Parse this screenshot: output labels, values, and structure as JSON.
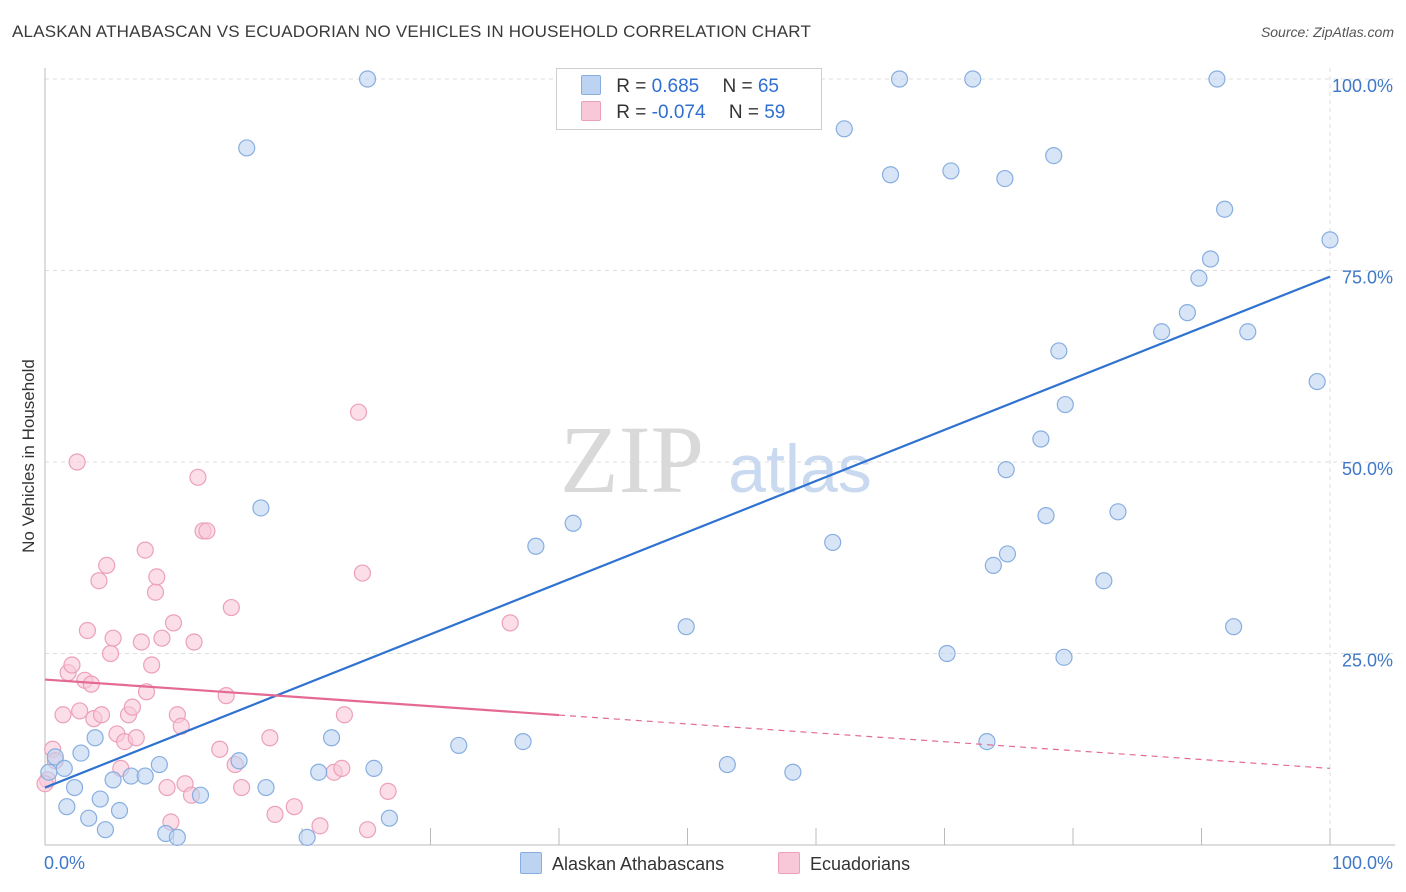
{
  "title": "ALASKAN ATHABASCAN VS ECUADORIAN NO VEHICLES IN HOUSEHOLD CORRELATION CHART",
  "source": "Source: ZipAtlas.com",
  "watermark": {
    "zip": "ZIP",
    "atlas": "atlas"
  },
  "legend": {
    "rows": [
      {
        "r_label": "R = ",
        "r_value": " 0.685",
        "n_label": "N = ",
        "n_value": "65"
      },
      {
        "r_label": "R = ",
        "r_value": "-0.074",
        "n_label": "N = ",
        "n_value": "59"
      }
    ]
  },
  "colors": {
    "blue_fill": "#bcd3f2",
    "blue_stroke": "#88aee0",
    "blue_line": "#2f72d0",
    "pink_fill": "#f8c8d8",
    "pink_stroke": "#eca0ba",
    "pink_line": "#e46a94",
    "grid": "#dddddd",
    "tick": "#3f78c8"
  },
  "chart_data": {
    "type": "scatter",
    "title": "ALASKAN ATHABASCAN VS ECUADORIAN NO VEHICLES IN HOUSEHOLD CORRELATION CHART",
    "xlabel": "",
    "ylabel": "No Vehicles in Household",
    "xlim": [
      0,
      100
    ],
    "ylim": [
      0,
      105
    ],
    "x_tick_labels": [
      "0.0%",
      "100.0%"
    ],
    "y_ticks": [
      {
        "value": 25,
        "label": "25.0%"
      },
      {
        "value": 50,
        "label": "50.0%"
      },
      {
        "value": 75,
        "label": "75.0%"
      },
      {
        "value": 100,
        "label": "100.0%"
      }
    ],
    "grid": true,
    "legend_position": "top-center",
    "series": [
      {
        "name": "Alaskan Athabascans",
        "r": 0.685,
        "n": 65,
        "trend": {
          "x": [
            0,
            100
          ],
          "y": [
            7.5,
            74.2
          ],
          "dashed_from": null
        },
        "points": [
          [
            0.3,
            9.5
          ],
          [
            0.8,
            11.5
          ],
          [
            1.5,
            10.0
          ],
          [
            1.7,
            5.0
          ],
          [
            2.3,
            7.5
          ],
          [
            2.8,
            12.0
          ],
          [
            3.4,
            3.5
          ],
          [
            3.9,
            14.0
          ],
          [
            4.3,
            6.0
          ],
          [
            4.7,
            2.0
          ],
          [
            5.3,
            8.5
          ],
          [
            5.8,
            4.5
          ],
          [
            6.7,
            9.0
          ],
          [
            7.8,
            9.0
          ],
          [
            8.9,
            10.5
          ],
          [
            9.4,
            1.5
          ],
          [
            10.3,
            1.0
          ],
          [
            12.1,
            6.5
          ],
          [
            15.1,
            11.0
          ],
          [
            17.2,
            7.5
          ],
          [
            15.7,
            91.0
          ],
          [
            16.8,
            44.0
          ],
          [
            20.4,
            1.0
          ],
          [
            21.3,
            9.5
          ],
          [
            22.3,
            14.0
          ],
          [
            25.1,
            100.0
          ],
          [
            25.6,
            10.0
          ],
          [
            26.8,
            3.5
          ],
          [
            32.2,
            13.0
          ],
          [
            37.2,
            13.5
          ],
          [
            38.2,
            39.0
          ],
          [
            41.1,
            42.0
          ],
          [
            49.9,
            28.5
          ],
          [
            53.1,
            10.5
          ],
          [
            58.2,
            9.5
          ],
          [
            61.3,
            39.5
          ],
          [
            62.2,
            93.5
          ],
          [
            65.8,
            87.5
          ],
          [
            66.5,
            100.0
          ],
          [
            70.2,
            25.0
          ],
          [
            70.5,
            88.0
          ],
          [
            72.2,
            100.0
          ],
          [
            73.3,
            13.5
          ],
          [
            73.8,
            36.5
          ],
          [
            74.7,
            87.0
          ],
          [
            74.8,
            49.0
          ],
          [
            74.9,
            38.0
          ],
          [
            77.5,
            53.0
          ],
          [
            77.9,
            43.0
          ],
          [
            78.5,
            90.0
          ],
          [
            78.9,
            64.5
          ],
          [
            79.3,
            24.5
          ],
          [
            79.4,
            57.5
          ],
          [
            82.4,
            34.5
          ],
          [
            83.5,
            43.5
          ],
          [
            86.9,
            67.0
          ],
          [
            88.9,
            69.5
          ],
          [
            89.8,
            74.0
          ],
          [
            90.7,
            76.5
          ],
          [
            91.2,
            100.0
          ],
          [
            91.8,
            83.0
          ],
          [
            92.5,
            28.5
          ],
          [
            93.6,
            67.0
          ],
          [
            99.0,
            60.5
          ],
          [
            100.0,
            79.0
          ]
        ]
      },
      {
        "name": "Ecuadorians",
        "r": -0.074,
        "n": 59,
        "trend": {
          "x": [
            0,
            100
          ],
          "y": [
            21.6,
            10.0
          ],
          "dashed_from": 40
        },
        "points": [
          [
            0.2,
            8.5
          ],
          [
            0.6,
            12.5
          ],
          [
            0.8,
            11.0
          ],
          [
            1.4,
            17.0
          ],
          [
            1.8,
            22.5
          ],
          [
            2.1,
            23.5
          ],
          [
            2.5,
            50.0
          ],
          [
            2.7,
            17.5
          ],
          [
            3.1,
            21.5
          ],
          [
            3.3,
            28.0
          ],
          [
            3.6,
            21.0
          ],
          [
            3.8,
            16.5
          ],
          [
            4.2,
            34.5
          ],
          [
            4.4,
            17.0
          ],
          [
            4.8,
            36.5
          ],
          [
            5.1,
            25.0
          ],
          [
            5.3,
            27.0
          ],
          [
            5.6,
            14.5
          ],
          [
            5.9,
            10.0
          ],
          [
            6.2,
            13.5
          ],
          [
            6.5,
            17.0
          ],
          [
            6.8,
            18.0
          ],
          [
            7.1,
            14.0
          ],
          [
            7.5,
            26.5
          ],
          [
            7.8,
            38.5
          ],
          [
            7.9,
            20.0
          ],
          [
            8.3,
            23.5
          ],
          [
            8.6,
            33.0
          ],
          [
            8.7,
            35.0
          ],
          [
            9.1,
            27.0
          ],
          [
            9.5,
            7.5
          ],
          [
            9.8,
            3.0
          ],
          [
            10.0,
            29.0
          ],
          [
            10.3,
            17.0
          ],
          [
            10.6,
            15.5
          ],
          [
            10.9,
            8.0
          ],
          [
            11.4,
            6.5
          ],
          [
            11.6,
            26.5
          ],
          [
            11.9,
            48.0
          ],
          [
            12.3,
            41.0
          ],
          [
            12.6,
            41.0
          ],
          [
            13.6,
            12.5
          ],
          [
            14.1,
            19.5
          ],
          [
            14.5,
            31.0
          ],
          [
            14.8,
            10.5
          ],
          [
            15.3,
            7.5
          ],
          [
            17.5,
            14.0
          ],
          [
            17.9,
            4.0
          ],
          [
            19.4,
            5.0
          ],
          [
            21.4,
            2.5
          ],
          [
            22.5,
            9.5
          ],
          [
            23.1,
            10.0
          ],
          [
            23.3,
            17.0
          ],
          [
            24.4,
            56.5
          ],
          [
            24.7,
            35.5
          ],
          [
            25.1,
            2.0
          ],
          [
            26.7,
            7.0
          ],
          [
            36.2,
            29.0
          ],
          [
            0.0,
            8.0
          ]
        ]
      }
    ]
  },
  "bottom_legend": [
    {
      "label": "Alaskan Athabascans"
    },
    {
      "label": "Ecuadorians"
    }
  ]
}
